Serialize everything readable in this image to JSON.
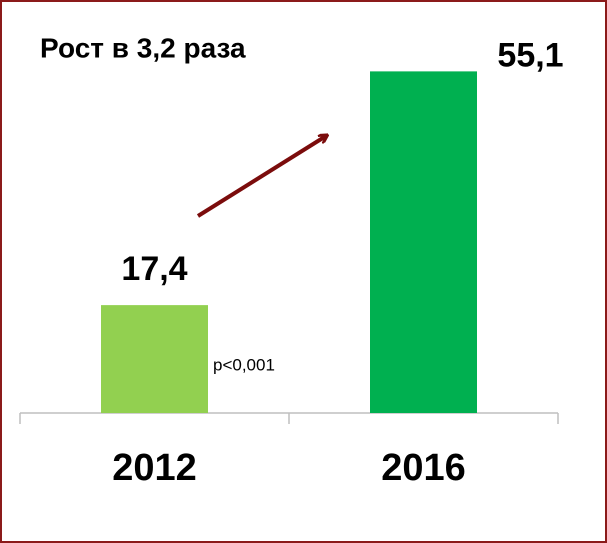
{
  "chart_data": {
    "type": "bar",
    "annotations": [
      "Рост в 3,2 раза",
      "p<0,001"
    ],
    "categories": [
      "2012",
      "2016"
    ],
    "values": [
      17.4,
      55.1
    ],
    "value_labels": [
      "17,4",
      "55,1"
    ],
    "colors": [
      "#92d050",
      "#00b050"
    ],
    "ylim": [
      0,
      60
    ]
  }
}
